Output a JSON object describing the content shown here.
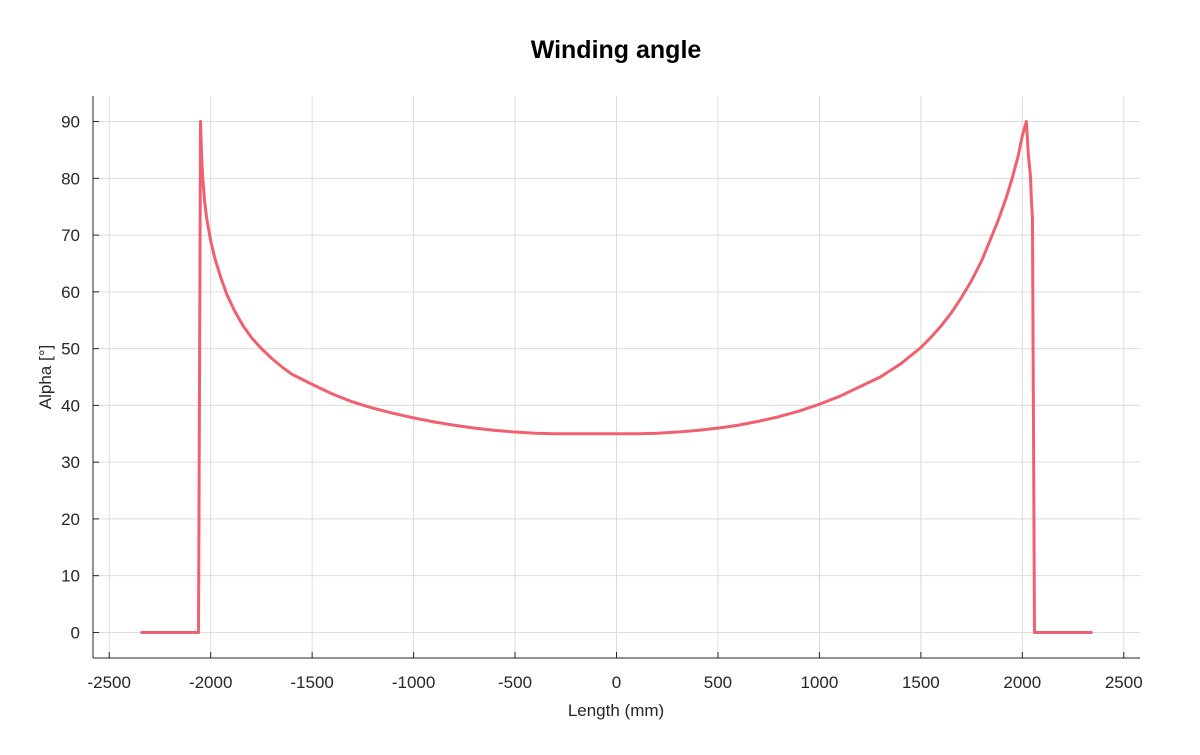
{
  "chart_data": {
    "type": "line",
    "title": "Winding angle",
    "xlabel": "Length (mm)",
    "ylabel": "Alpha [°]",
    "xlim": [
      -2580,
      2580
    ],
    "ylim": [
      -4.5,
      94.5
    ],
    "xticks": [
      -2500,
      -2000,
      -1500,
      -1000,
      -500,
      0,
      500,
      1000,
      1500,
      2000,
      2500
    ],
    "yticks": [
      0,
      10,
      20,
      30,
      40,
      50,
      60,
      70,
      80,
      90
    ],
    "grid": true,
    "legend": "none",
    "series": [
      {
        "color": "#f0606e",
        "x": [
          -2340,
          -2060,
          -2050,
          -2045,
          -2040,
          -2030,
          -2020,
          -2000,
          -1980,
          -1950,
          -1920,
          -1880,
          -1840,
          -1800,
          -1750,
          -1700,
          -1650,
          -1600,
          -1550,
          -1500,
          -1400,
          -1300,
          -1200,
          -1100,
          -1000,
          -900,
          -800,
          -700,
          -600,
          -500,
          -400,
          -300,
          -200,
          -100,
          0,
          100,
          200,
          300,
          400,
          500,
          600,
          700,
          800,
          900,
          1000,
          1100,
          1200,
          1300,
          1400,
          1500,
          1550,
          1600,
          1650,
          1700,
          1750,
          1800,
          1840,
          1880,
          1920,
          1950,
          1980,
          2000,
          2020,
          2030,
          2040,
          2045,
          2050,
          2060,
          2340
        ],
        "y": [
          0,
          0,
          90,
          84,
          80.5,
          76,
          73,
          69,
          66,
          62.5,
          59.5,
          56.5,
          54,
          52,
          50,
          48.3,
          46.8,
          45.5,
          44.6,
          43.7,
          42,
          40.6,
          39.5,
          38.6,
          37.8,
          37.1,
          36.5,
          36,
          35.6,
          35.3,
          35.1,
          35,
          35,
          35,
          35,
          35,
          35.1,
          35.3,
          35.6,
          36,
          36.5,
          37.2,
          38,
          39,
          40.2,
          41.6,
          43.3,
          45,
          47.3,
          50.2,
          52,
          54,
          56.3,
          59,
          62,
          65.5,
          69,
          72.5,
          76.5,
          80,
          84,
          87.5,
          90,
          84,
          80.5,
          76,
          73,
          0,
          0
        ]
      }
    ]
  }
}
